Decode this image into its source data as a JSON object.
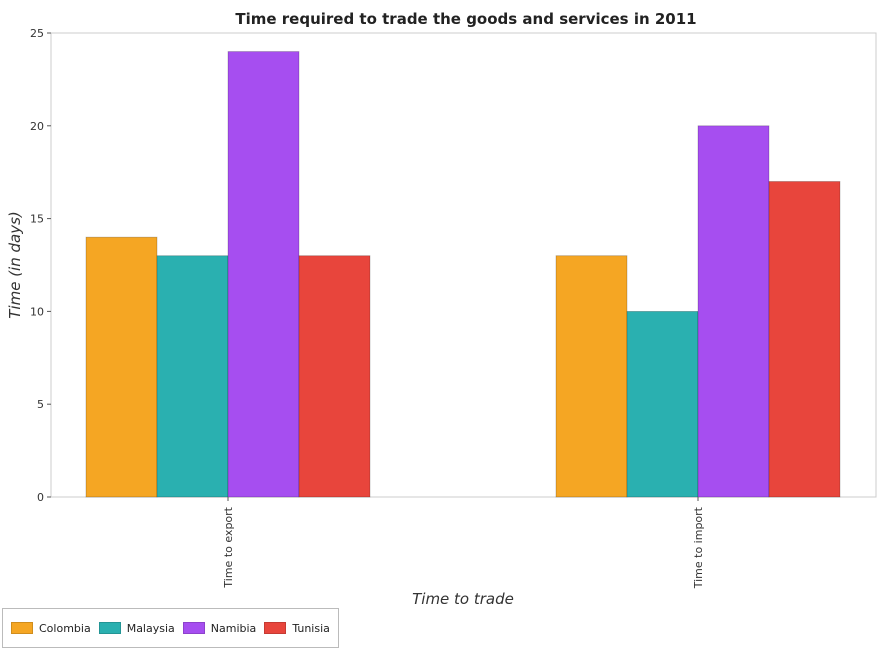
{
  "chart_data": {
    "type": "bar",
    "title": "Time required to trade the goods and services in 2011",
    "xlabel": "Time to trade",
    "ylabel": "Time (in days)",
    "categories": [
      "Time to export",
      "Time to import"
    ],
    "series": [
      {
        "name": "Colombia",
        "color": "#f5a623",
        "values": [
          14,
          13
        ]
      },
      {
        "name": "Malaysia",
        "color": "#2ab0b0",
        "values": [
          13,
          10
        ]
      },
      {
        "name": "Namibia",
        "color": "#a64ef0",
        "values": [
          24,
          20
        ]
      },
      {
        "name": "Tunisia",
        "color": "#e8453c",
        "values": [
          13,
          17
        ]
      }
    ],
    "ylim": [
      0,
      25
    ],
    "yticks": [
      0,
      5,
      10,
      15,
      20,
      25
    ],
    "grid": false,
    "legend_position": "bottom-left"
  }
}
